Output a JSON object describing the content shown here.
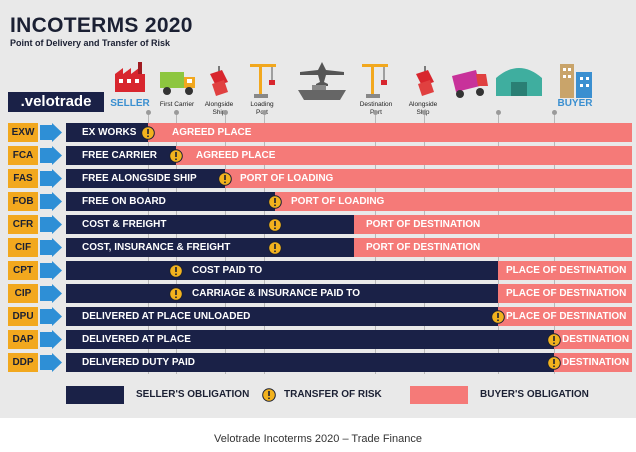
{
  "title": "INCOTERMS 2020",
  "subtitle": "Point of Delivery and Transfer of Risk",
  "logo": ".velotrade",
  "stages": {
    "seller": "SELLER",
    "first_carrier": "First Carrier",
    "alongside_ship_1": "Alongside Ship",
    "loading_port": "Loading Port",
    "destination_port": "Destination Port",
    "alongside_ship_2": "Alongside Ship",
    "buyer": "BUYER"
  },
  "rows": [
    {
      "code": "EXW",
      "term": "EX WORKS",
      "place": "AGREED PLACE"
    },
    {
      "code": "FCA",
      "term": "FREE CARRIER",
      "place": "AGREED PLACE"
    },
    {
      "code": "FAS",
      "term": "FREE ALONGSIDE SHIP",
      "place": "PORT OF LOADING"
    },
    {
      "code": "FOB",
      "term": "FREE ON BOARD",
      "place": "PORT OF LOADING"
    },
    {
      "code": "CFR",
      "term": "COST & FREIGHT",
      "place": "PORT OF DESTINATION"
    },
    {
      "code": "CIF",
      "term": "COST, INSURANCE & FREIGHT",
      "place": "PORT OF DESTINATION"
    },
    {
      "code": "CPT",
      "term": "COST PAID TO",
      "place": "PLACE OF DESTINATION"
    },
    {
      "code": "CIP",
      "term": "CARRIAGE & INSURANCE PAID TO",
      "place": "PLACE OF DESTINATION"
    },
    {
      "code": "DPU",
      "term": "DELIVERED AT PLACE UNLOADED",
      "place": "PLACE OF DESTINATION"
    },
    {
      "code": "DAP",
      "term": "DELIVERED AT PLACE",
      "place": "DESTINATION"
    },
    {
      "code": "DDP",
      "term": "DELIVERED DUTY PAID",
      "place": "DESTINATION"
    }
  ],
  "legend": {
    "seller": "SELLER'S OBLIGATION",
    "risk": "TRANSFER OF RISK",
    "buyer": "BUYER'S OBLIGATION"
  },
  "caption": "Velotrade Incoterms 2020 – Trade Finance",
  "colors": {
    "seller": "#1a2147",
    "buyer": "#f57a78",
    "code": "#f2a81e",
    "arrow": "#2e8fd6",
    "risk": "#f2b21e"
  }
}
